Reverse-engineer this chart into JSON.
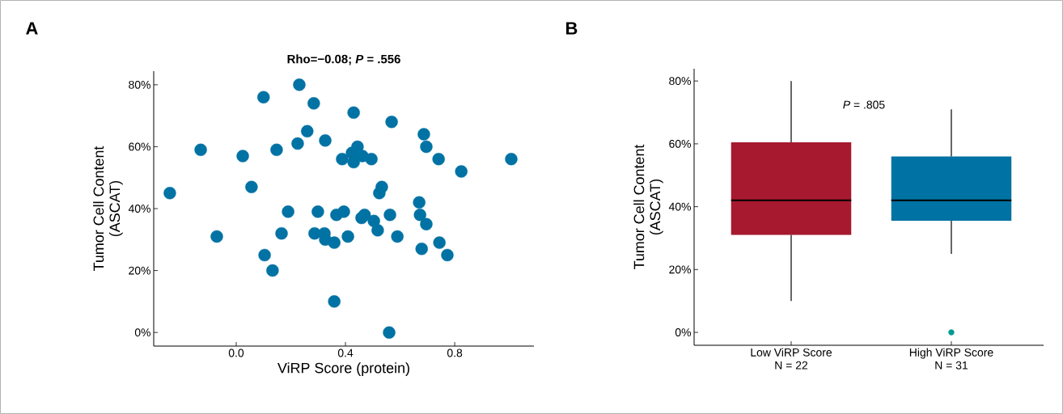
{
  "chart_data": [
    {
      "type": "scatter",
      "title": "Rho=−0.08; *P* = .556",
      "xlabel": "ViRP Score (protein)",
      "ylabel": "Tumor Cell Content (ASCAT)",
      "annotations": [
        "A"
      ],
      "x": [
        -0.243,
        -0.13,
        -0.071,
        0.024,
        0.056,
        0.1,
        0.104,
        0.133,
        0.148,
        0.166,
        0.19,
        0.225,
        0.231,
        0.26,
        0.284,
        0.287,
        0.299,
        0.323,
        0.326,
        0.326,
        0.359,
        0.359,
        0.367,
        0.388,
        0.394,
        0.409,
        0.424,
        0.43,
        0.43,
        0.444,
        0.459,
        0.462,
        0.47,
        0.495,
        0.504,
        0.518,
        0.524,
        0.533,
        0.56,
        0.563,
        0.569,
        0.59,
        0.67,
        0.673,
        0.679,
        0.687,
        0.696,
        0.696,
        0.741,
        0.744,
        0.773,
        0.824,
        1.007
      ],
      "values": [
        45,
        59,
        31,
        57,
        47,
        76,
        25,
        20,
        59,
        32,
        39,
        61,
        80,
        65,
        74,
        32,
        39,
        32,
        30,
        62,
        29,
        10,
        38,
        56,
        39,
        31,
        58,
        71,
        55,
        60,
        37,
        57,
        38,
        56,
        36,
        33,
        45,
        47,
        0,
        38,
        68,
        31,
        42,
        38,
        27,
        64,
        35,
        60,
        56,
        29,
        25,
        52,
        56
      ],
      "color": "#0072a3",
      "xlim": [
        -0.302,
        1.09
      ],
      "ylim": [
        -4.4,
        84.4
      ],
      "xticks": [
        {
          "value": 0,
          "label": "0.0"
        },
        {
          "value": 0.4,
          "label": "0.4"
        },
        {
          "value": 0.8,
          "label": "0.8"
        }
      ],
      "yticks": [
        {
          "value": 0,
          "label": "0%"
        },
        {
          "value": 20,
          "label": "20%"
        },
        {
          "value": 40,
          "label": "40%"
        },
        {
          "value": 60,
          "label": "60%"
        },
        {
          "value": 80,
          "label": "80%"
        }
      ]
    },
    {
      "type": "box",
      "ylabel": "Tumor Cell Content (ASCAT)",
      "annotations": [
        "B",
        "*P* = .805"
      ],
      "categories": [
        "Low ViRP Score N = 22",
        "High ViRP Score N = 31"
      ],
      "boxes": [
        {
          "low": 10,
          "q1": 31,
          "median": 42,
          "q3": 60.5,
          "high": 80
        },
        {
          "low": 25,
          "q1": 35.5,
          "median": 42,
          "q3": 56,
          "high": 71,
          "outliers": [
            0
          ]
        }
      ],
      "colors": [
        "#a6192e",
        "#0072a3"
      ],
      "ylim": [
        -4.1,
        83.9
      ],
      "yticks": [
        {
          "value": 0,
          "label": "0%"
        },
        {
          "value": 20,
          "label": "20%"
        },
        {
          "value": 40,
          "label": "40%"
        },
        {
          "value": 60,
          "label": "60%"
        },
        {
          "value": 80,
          "label": "80%"
        }
      ]
    }
  ]
}
